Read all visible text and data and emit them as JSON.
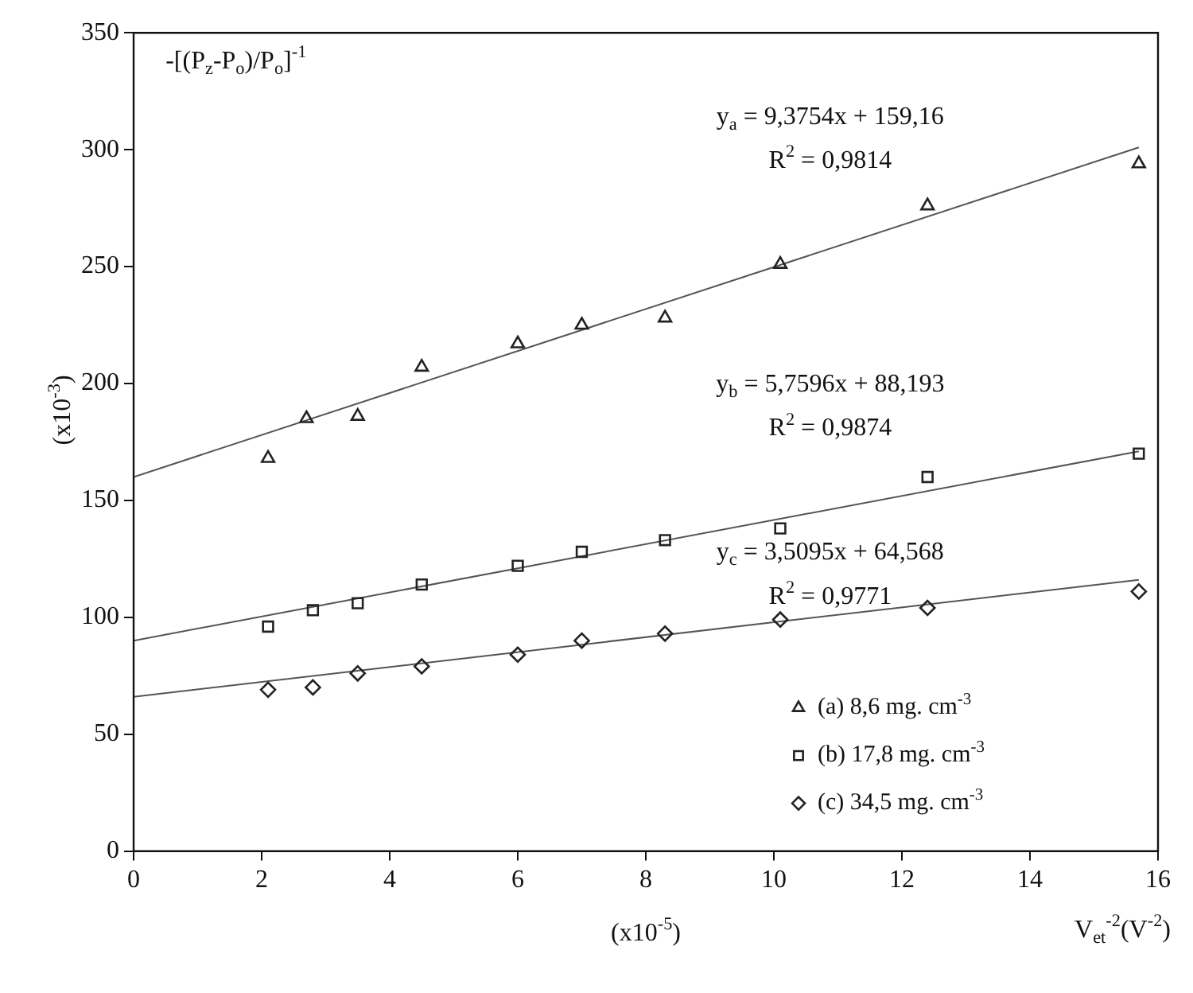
{
  "chart_data": {
    "type": "scatter",
    "ylabel": "(x10$^{-3}$)",
    "xlabel": "V$_{et}$$^{-2}$(V$^{-2}$)",
    "xlim": [
      0,
      16
    ],
    "xticks": [
      0,
      2,
      4,
      6,
      8,
      10,
      12,
      14,
      16
    ],
    "ylim": [
      0,
      350
    ],
    "yticks": [
      0,
      50,
      100,
      150,
      200,
      250,
      300,
      350
    ],
    "grid": false,
    "legend": "bottom right",
    "series": [
      {
        "name": "(a) 8,6 mg. cm$^{-3}$",
        "color": "#222222",
        "marker": "triangle",
        "x": [
          2.1,
          2.7,
          3.5,
          4.5,
          6,
          7,
          8.3,
          10.1,
          12.4,
          15.7
        ],
        "values": [
          168,
          185,
          186,
          207,
          217,
          225,
          228,
          251,
          276,
          294
        ]
      },
      {
        "name": "(b) 17,8 mg. cm$^{-3}$",
        "color": "#222222",
        "marker": "square",
        "x": [
          2.1,
          2.8,
          3.5,
          4.5,
          6,
          7,
          8.3,
          10.1,
          12.4,
          15.7
        ],
        "values": [
          96,
          103,
          106,
          114,
          122,
          128,
          133,
          138,
          160,
          170
        ]
      },
      {
        "name": "(c) 34,5 mg. cm$^{-3}$",
        "color": "#222222",
        "marker": "diamond",
        "x": [
          2.1,
          2.8,
          3.5,
          4.5,
          6,
          7,
          8.3,
          10.1,
          12.4,
          15.7
        ],
        "values": [
          69,
          70,
          76,
          79,
          84,
          90,
          93,
          99,
          104,
          111
        ]
      },
      {
        "type": "line",
        "color": "#555555",
        "marker": "none",
        "x": [
          0,
          15.7
        ],
        "values": [
          160,
          301
        ]
      },
      {
        "type": "line",
        "color": "#555555",
        "marker": "none",
        "x": [
          0,
          15.7
        ],
        "values": [
          90,
          171
        ]
      },
      {
        "type": "line",
        "color": "#555555",
        "marker": "none",
        "x": [
          0,
          15.7
        ],
        "values": [
          66,
          116
        ]
      }
    ],
    "annotations": [
      "-[(P$_{z}$-P$_{o}$)/P$_{o}$]$^{-1}$",
      "y$_{a}$ = 9,3754x + 159,16",
      "R$^{2}$ = 0,9814",
      "y$_{b}$ = 5,7596x + 88,193",
      "R$^{2}$ = 0,9874",
      "y$_{c}$ = 3,5095x + 64,568",
      "R$^{2}$ = 0,9771",
      "(x10$^{-5}$)"
    ]
  }
}
